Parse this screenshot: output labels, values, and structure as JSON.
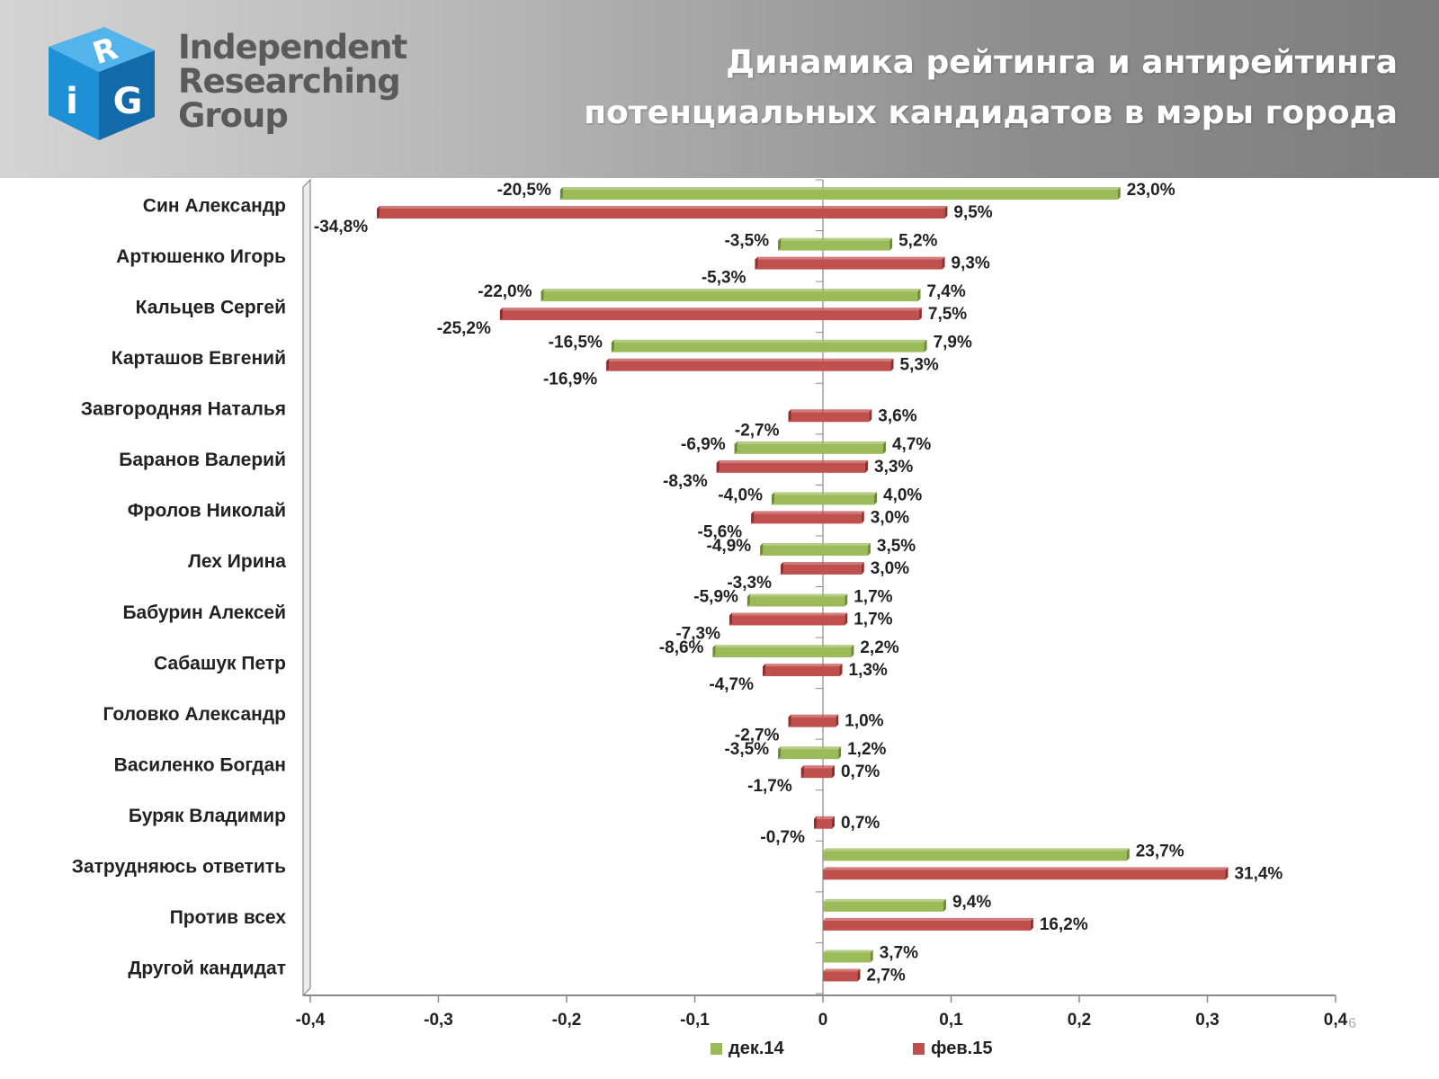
{
  "header": {
    "logo": {
      "letters": [
        "R",
        "i",
        "G"
      ],
      "lines": [
        "Independent",
        "Researching",
        "Group"
      ]
    },
    "title_line1": "Динамика рейтинга и антирейтинга",
    "title_line2": "потенциальных кандидатов в мэры города"
  },
  "page_number": "6",
  "colors": {
    "series1": "#9bbb59",
    "series2": "#c0504d",
    "cube_front": "#1e90d6",
    "cube_top": "#52b4ea",
    "cube_side": "#136aa8"
  },
  "chart_data": {
    "type": "bar",
    "orientation": "horizontal",
    "categories": [
      "Син Александр",
      "Артюшенко Игорь",
      "Кальцев Сергей",
      "Карташов Евгений",
      "Завгородняя Наталья",
      "Баранов Валерий",
      "Фролов Николай",
      "Лех Ирина",
      "Бабурин Алексей",
      "Сабашук Петр",
      "Головко Александр",
      "Василенко Богдан",
      "Буряк Владимир",
      "Затрудняюсь ответить",
      "Против всех",
      "Другой кандидат"
    ],
    "series": [
      {
        "name": "дек.14",
        "positive": [
          0.23,
          0.052,
          0.074,
          0.079,
          null,
          0.047,
          0.04,
          0.035,
          0.017,
          0.022,
          null,
          0.012,
          null,
          0.237,
          0.094,
          0.037
        ],
        "positive_labels": [
          "23,0%",
          "5,2%",
          "7,4%",
          "7,9%",
          "",
          "4,7%",
          "4,0%",
          "3,5%",
          "1,7%",
          "2,2%",
          "",
          "1,2%",
          "",
          "23,7%",
          "9,4%",
          "3,7%"
        ],
        "negative": [
          -0.205,
          -0.035,
          -0.22,
          -0.165,
          null,
          -0.069,
          -0.04,
          -0.049,
          -0.059,
          -0.086,
          null,
          -0.035,
          null,
          null,
          null,
          null
        ],
        "negative_labels": [
          "-20,5%",
          "-3,5%",
          "-22,0%",
          "-16,5%",
          "",
          "-6,9%",
          "-4,0%",
          "-4,9%",
          "-5,9%",
          "-8,6%",
          "",
          "-3,5%",
          "",
          "",
          "",
          ""
        ]
      },
      {
        "name": "фев.15",
        "positive": [
          0.095,
          0.093,
          0.075,
          0.053,
          0.036,
          0.033,
          0.03,
          0.03,
          0.017,
          0.013,
          0.01,
          0.007,
          0.007,
          0.314,
          0.162,
          0.027
        ],
        "positive_labels": [
          "9,5%",
          "9,3%",
          "7,5%",
          "5,3%",
          "3,6%",
          "3,3%",
          "3,0%",
          "3,0%",
          "1,7%",
          "1,3%",
          "1,0%",
          "0,7%",
          "0,7%",
          "31,4%",
          "16,2%",
          "2,7%"
        ],
        "negative": [
          -0.348,
          -0.053,
          -0.252,
          -0.169,
          -0.027,
          -0.083,
          -0.056,
          -0.033,
          -0.073,
          -0.047,
          -0.027,
          -0.017,
          -0.007,
          null,
          null,
          null
        ],
        "negative_labels": [
          "-34,8%",
          "-5,3%",
          "-25,2%",
          "-16,9%",
          "-2,7%",
          "-8,3%",
          "-5,6%",
          "-3,3%",
          "-7,3%",
          "-4,7%",
          "-2,7%",
          "-1,7%",
          "-0,7%",
          "",
          "",
          ""
        ]
      }
    ],
    "xlim": [
      -0.4,
      0.4
    ],
    "x_ticks": [
      "-0,4",
      "-0,3",
      "-0,2",
      "-0,1",
      "0",
      "0,1",
      "0,2",
      "0,3",
      "0,4"
    ],
    "legend_position": "bottom",
    "grid": false
  }
}
